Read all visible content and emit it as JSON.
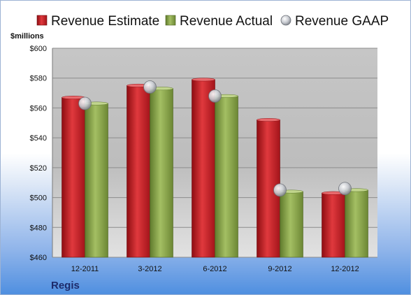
{
  "chart_data": {
    "type": "bar",
    "ylabel": "$millions",
    "company": "Regis",
    "categories": [
      "12-2011",
      "3-2012",
      "6-2012",
      "9-2012",
      "12-2012"
    ],
    "ylim": [
      460,
      600
    ],
    "yticks": [
      460,
      480,
      500,
      520,
      540,
      560,
      580,
      600
    ],
    "ytick_labels": [
      "$460",
      "$480",
      "$500",
      "$520",
      "$540",
      "$560",
      "$580",
      "$600"
    ],
    "grid": true,
    "legend_position": "top",
    "series": [
      {
        "name": "Revenue Estimate",
        "kind": "bar",
        "color": "#cc1f25",
        "values": [
          567,
          575,
          579,
          552,
          503
        ]
      },
      {
        "name": "Revenue Actual",
        "kind": "bar",
        "color": "#8aa54a",
        "values": [
          563,
          573,
          568,
          504,
          505
        ]
      },
      {
        "name": "Revenue GAAP",
        "kind": "marker",
        "color": "#b9bcc2",
        "values": [
          563,
          574,
          568,
          505,
          506
        ]
      }
    ]
  }
}
